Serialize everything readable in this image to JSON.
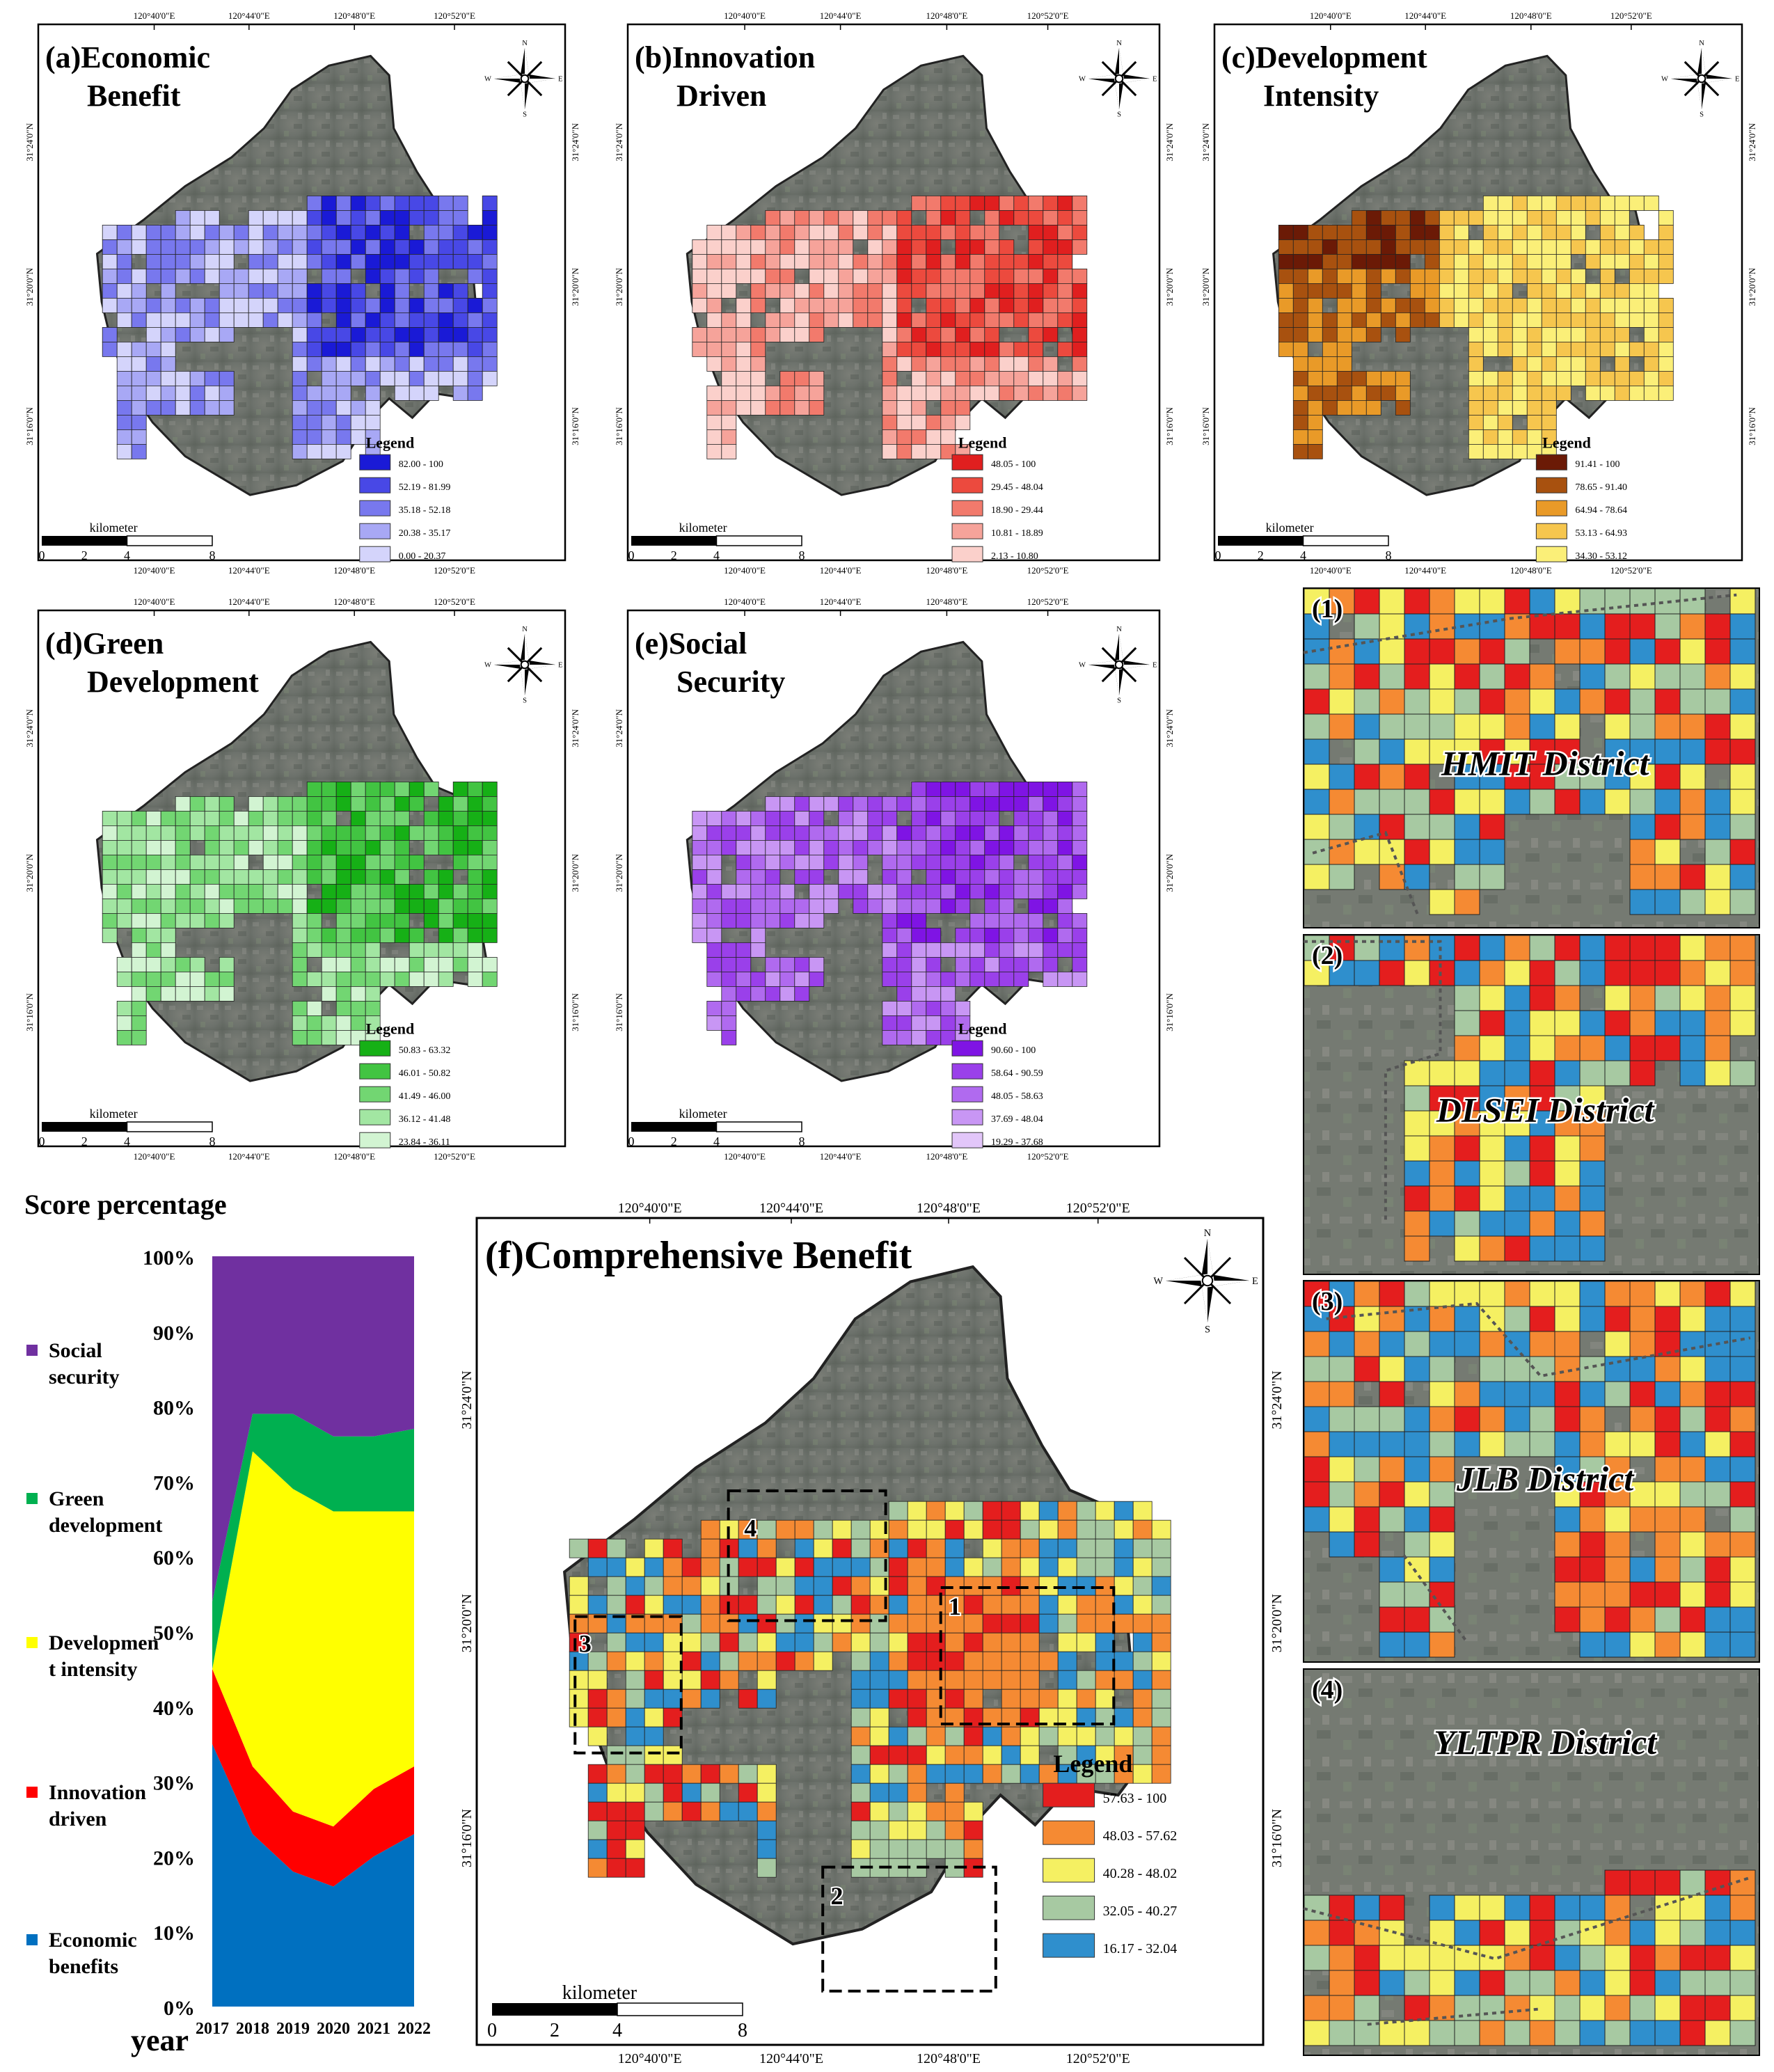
{
  "coords": {
    "top": [
      "120°40'0\"E",
      "120°44'0\"E",
      "120°48'0\"E",
      "120°52'0\"E"
    ],
    "left": [
      "31°24'0\"N",
      "31°20'0\"N",
      "31°16'0\"N"
    ]
  },
  "compass": {
    "n": "N",
    "s": "S",
    "e": "E",
    "w": "W"
  },
  "scalebar": {
    "unit": "kilometer",
    "ticks": [
      "0",
      "2",
      "4",
      "8"
    ]
  },
  "legend_title": "Legend",
  "panels": [
    {
      "id": "a",
      "title_line1": "(a)Economic",
      "title_line2": "Benefit",
      "colors": [
        "#1a1ad6",
        "#4848e6",
        "#7878ee",
        "#a8a8f5",
        "#d4d4fb"
      ],
      "classes": [
        "82.00 - 100",
        "52.19 - 81.99",
        "35.18 - 52.18",
        "20.38 - 35.17",
        "0.00 - 20.37"
      ]
    },
    {
      "id": "b",
      "title_line1": "(b)Innovation",
      "title_line2": "Driven",
      "colors": [
        "#e01f1f",
        "#ec4a3e",
        "#f27a6c",
        "#f6a39a",
        "#fbd0cb"
      ],
      "classes": [
        "48.05 - 100",
        "29.45 - 48.04",
        "18.90 - 29.44",
        "10.81 - 18.89",
        "2.13 - 10.80"
      ]
    },
    {
      "id": "c",
      "title_line1": "(c)Development",
      "title_line2": "Intensity",
      "colors": [
        "#6b1a06",
        "#a8510f",
        "#e99a28",
        "#f6c64e",
        "#fbef78"
      ],
      "classes": [
        "91.41 - 100",
        "78.65 - 91.40",
        "64.94 - 78.64",
        "53.13 - 64.93",
        "34.30 - 53.12"
      ]
    },
    {
      "id": "d",
      "title_line1": "(d)Green",
      "title_line2": "Development",
      "colors": [
        "#16b016",
        "#42c442",
        "#72d672",
        "#a2e6a2",
        "#d2f4d2"
      ],
      "classes": [
        "50.83 - 63.32",
        "46.01 - 50.82",
        "41.49 - 46.00",
        "36.12 - 41.48",
        "23.84 - 36.11"
      ]
    },
    {
      "id": "e",
      "title_line1": "(e)Social",
      "title_line2": "Security",
      "colors": [
        "#7f14e4",
        "#9a40ea",
        "#b06aef",
        "#c896f4",
        "#e2c6f9"
      ],
      "classes": [
        "90.60 - 100",
        "58.64 - 90.59",
        "48.05 - 58.63",
        "37.69 - 48.04",
        "19.29 - 37.68"
      ]
    }
  ],
  "comprehensive": {
    "title": "(f)Comprehensive Benefit",
    "colors": [
      "#e41e1e",
      "#f58a33",
      "#f5f062",
      "#a7c9a2",
      "#2f8fcd"
    ],
    "classes": [
      "57.63 - 100",
      "48.03 - 57.62",
      "40.28 - 48.02",
      "32.05 - 40.27",
      "16.17 - 32.04"
    ],
    "box_labels": [
      "1",
      "2",
      "3",
      "4"
    ]
  },
  "insets": [
    {
      "num": "(1)",
      "name": "HMIT District"
    },
    {
      "num": "(2)",
      "name": "DLSEI District"
    },
    {
      "num": "(3)",
      "name": "JLB District"
    },
    {
      "num": "(4)",
      "name": "YLTPR District"
    }
  ],
  "chart_data": {
    "type": "area",
    "stacked": true,
    "percent": true,
    "title": "Score percentage",
    "xlabel": "year",
    "x": [
      "2017",
      "2018",
      "2019",
      "2020",
      "2021",
      "2022"
    ],
    "yticks": [
      "0%",
      "10%",
      "20%",
      "30%",
      "40%",
      "50%",
      "60%",
      "70%",
      "80%",
      "90%",
      "100%"
    ],
    "ylim": [
      0,
      100
    ],
    "series": [
      {
        "name": "Economic benefits",
        "color": "#0070c0",
        "values": [
          35,
          23,
          18,
          16,
          20,
          23
        ]
      },
      {
        "name": "Innovation driven",
        "color": "#ff0000",
        "values": [
          10,
          9,
          8,
          8,
          9,
          9
        ]
      },
      {
        "name": "Development intensity",
        "color": "#ffff00",
        "values": [
          0,
          42,
          43,
          42,
          37,
          34
        ]
      },
      {
        "name": "Green development",
        "color": "#00b050",
        "values": [
          9,
          5,
          10,
          10,
          10,
          11
        ]
      },
      {
        "name": "Social security",
        "color": "#7030a0",
        "values": [
          46,
          21,
          21,
          24,
          24,
          23
        ]
      }
    ],
    "legend_labels": [
      {
        "line1": "Social",
        "line2": "security",
        "color": "#7030a0"
      },
      {
        "line1": "Green",
        "line2": "development",
        "color": "#00b050"
      },
      {
        "line1": "Developmen",
        "line2": "t intensity",
        "color": "#ffff00"
      },
      {
        "line1": "Innovation",
        "line2": "driven",
        "color": "#ff0000"
      },
      {
        "line1": "Economic",
        "line2": "benefits",
        "color": "#0070c0"
      }
    ]
  }
}
